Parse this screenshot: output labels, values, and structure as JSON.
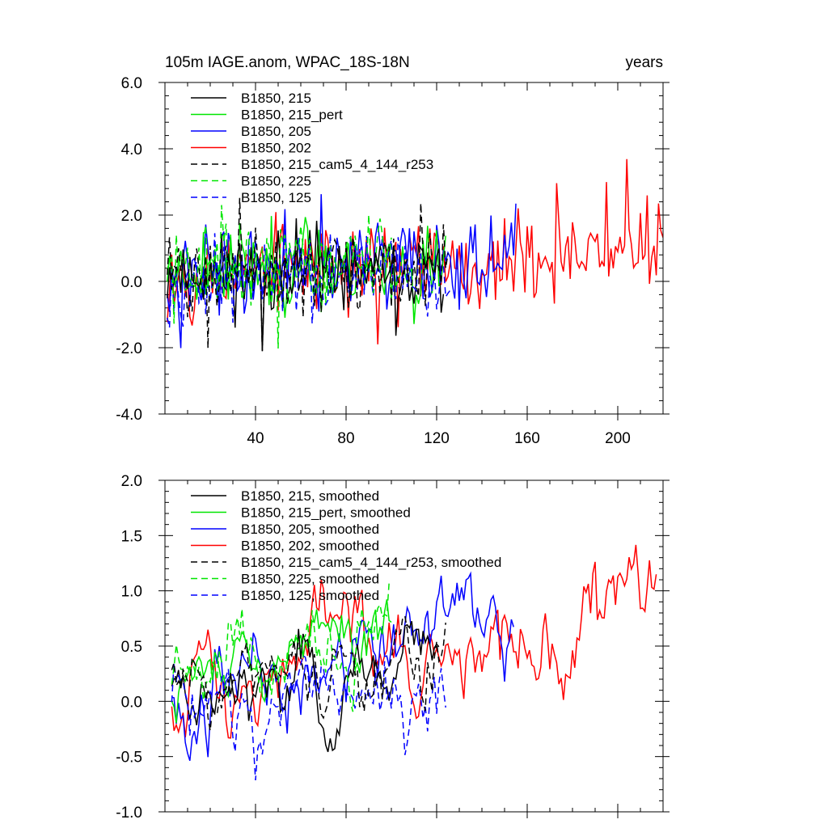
{
  "chart_data": [
    {
      "type": "line",
      "title_left": "105m IAGE.anom, WPAC_18S-18N",
      "title_right": "years",
      "xlim": [
        0,
        220
      ],
      "ylim": [
        -4.0,
        6.0
      ],
      "xticks": [
        40,
        80,
        120,
        160,
        200
      ],
      "xtick_labels": [
        "40",
        "80",
        "120",
        "160",
        "200"
      ],
      "yticks": [
        -4,
        -2,
        0,
        2,
        4,
        6
      ],
      "ytick_labels": [
        "-4.0",
        "-2.0",
        "0.0",
        "2.0",
        "4.0",
        "6.0"
      ],
      "show_x_labels": true,
      "legend_position": "top-left",
      "series": [
        {
          "name": "B1850, 215",
          "color": "#000000",
          "dash": "solid",
          "start": 1,
          "length": 123,
          "seed": 11,
          "base": 0.25,
          "trend": 0.0,
          "amp": 0.75
        },
        {
          "name": "B1850, 215_pert",
          "color": "#00e600",
          "dash": "solid",
          "start": 1,
          "length": 124,
          "seed": 23,
          "base": 0.4,
          "trend": 0.0,
          "amp": 0.8
        },
        {
          "name": "B1850, 205",
          "color": "#0000ff",
          "dash": "solid",
          "start": 1,
          "length": 155,
          "seed": 37,
          "base": 0.2,
          "trend": 0.004,
          "amp": 0.8
        },
        {
          "name": "B1850, 202",
          "color": "#ff0000",
          "dash": "solid",
          "start": 1,
          "length": 220,
          "seed": 53,
          "base": 0.2,
          "trend": 0.004,
          "amp": 0.85
        },
        {
          "name": "B1850, 215_cam5_4_144_r253",
          "color": "#000000",
          "dash": "8,5",
          "start": 1,
          "length": 125,
          "seed": 71,
          "base": 0.3,
          "trend": 0.0,
          "amp": 0.75
        },
        {
          "name": "B1850, 225",
          "color": "#00e600",
          "dash": "8,5",
          "start": 1,
          "length": 100,
          "seed": 89,
          "base": 0.5,
          "trend": 0.004,
          "amp": 0.8
        },
        {
          "name": "B1850, 125",
          "color": "#0000ff",
          "dash": "8,5",
          "start": 1,
          "length": 126,
          "seed": 97,
          "base": 0.0,
          "trend": 0.0,
          "amp": 0.75
        }
      ]
    },
    {
      "type": "line",
      "title_left": "",
      "title_right": "",
      "xlim": [
        0,
        220
      ],
      "ylim": [
        -1.0,
        2.0
      ],
      "xticks": [
        40,
        80,
        120,
        160,
        200
      ],
      "xtick_labels": [
        "",
        "",
        "",
        "",
        ""
      ],
      "yticks": [
        -1.0,
        -0.5,
        0.0,
        0.5,
        1.0,
        1.5,
        2.0
      ],
      "ytick_labels": [
        "-1.0",
        "-0.5",
        "0.0",
        "0.5",
        "1.0",
        "1.5",
        "2.0"
      ],
      "show_x_labels": false,
      "legend_position": "top-left",
      "series": [
        {
          "name": "B1850, 215, smoothed",
          "color": "#000000",
          "dash": "solid",
          "start": 3,
          "length": 119,
          "seed": 111,
          "base": 0.15,
          "trend": 0.0015,
          "amp": 0.28
        },
        {
          "name": "B1850, 215_pert, smoothed",
          "color": "#00e600",
          "dash": "solid",
          "start": 3,
          "length": 98,
          "seed": 123,
          "base": 0.2,
          "trend": 0.004,
          "amp": 0.3
        },
        {
          "name": "B1850, 205, smoothed",
          "color": "#0000ff",
          "dash": "solid",
          "start": 3,
          "length": 152,
          "seed": 137,
          "base": 0.0,
          "trend": 0.005,
          "amp": 0.35
        },
        {
          "name": "B1850, 202, smoothed",
          "color": "#ff0000",
          "dash": "solid",
          "start": 3,
          "length": 215,
          "seed": 153,
          "base": 0.1,
          "trend": 0.0035,
          "amp": 0.35
        },
        {
          "name": "B1850, 215_cam5_4_144_r253, smoothed",
          "color": "#000000",
          "dash": "8,5",
          "start": 3,
          "length": 122,
          "seed": 171,
          "base": 0.15,
          "trend": 0.002,
          "amp": 0.3
        },
        {
          "name": "B1850, 225, smoothed",
          "color": "#00e600",
          "dash": "8,5",
          "start": 3,
          "length": 97,
          "seed": 189,
          "base": 0.3,
          "trend": 0.004,
          "amp": 0.3
        },
        {
          "name": "B1850, 125, smoothed",
          "color": "#0000ff",
          "dash": "8,5",
          "start": 3,
          "length": 122,
          "seed": 197,
          "base": 0.1,
          "trend": -0.001,
          "amp": 0.35
        }
      ]
    }
  ]
}
